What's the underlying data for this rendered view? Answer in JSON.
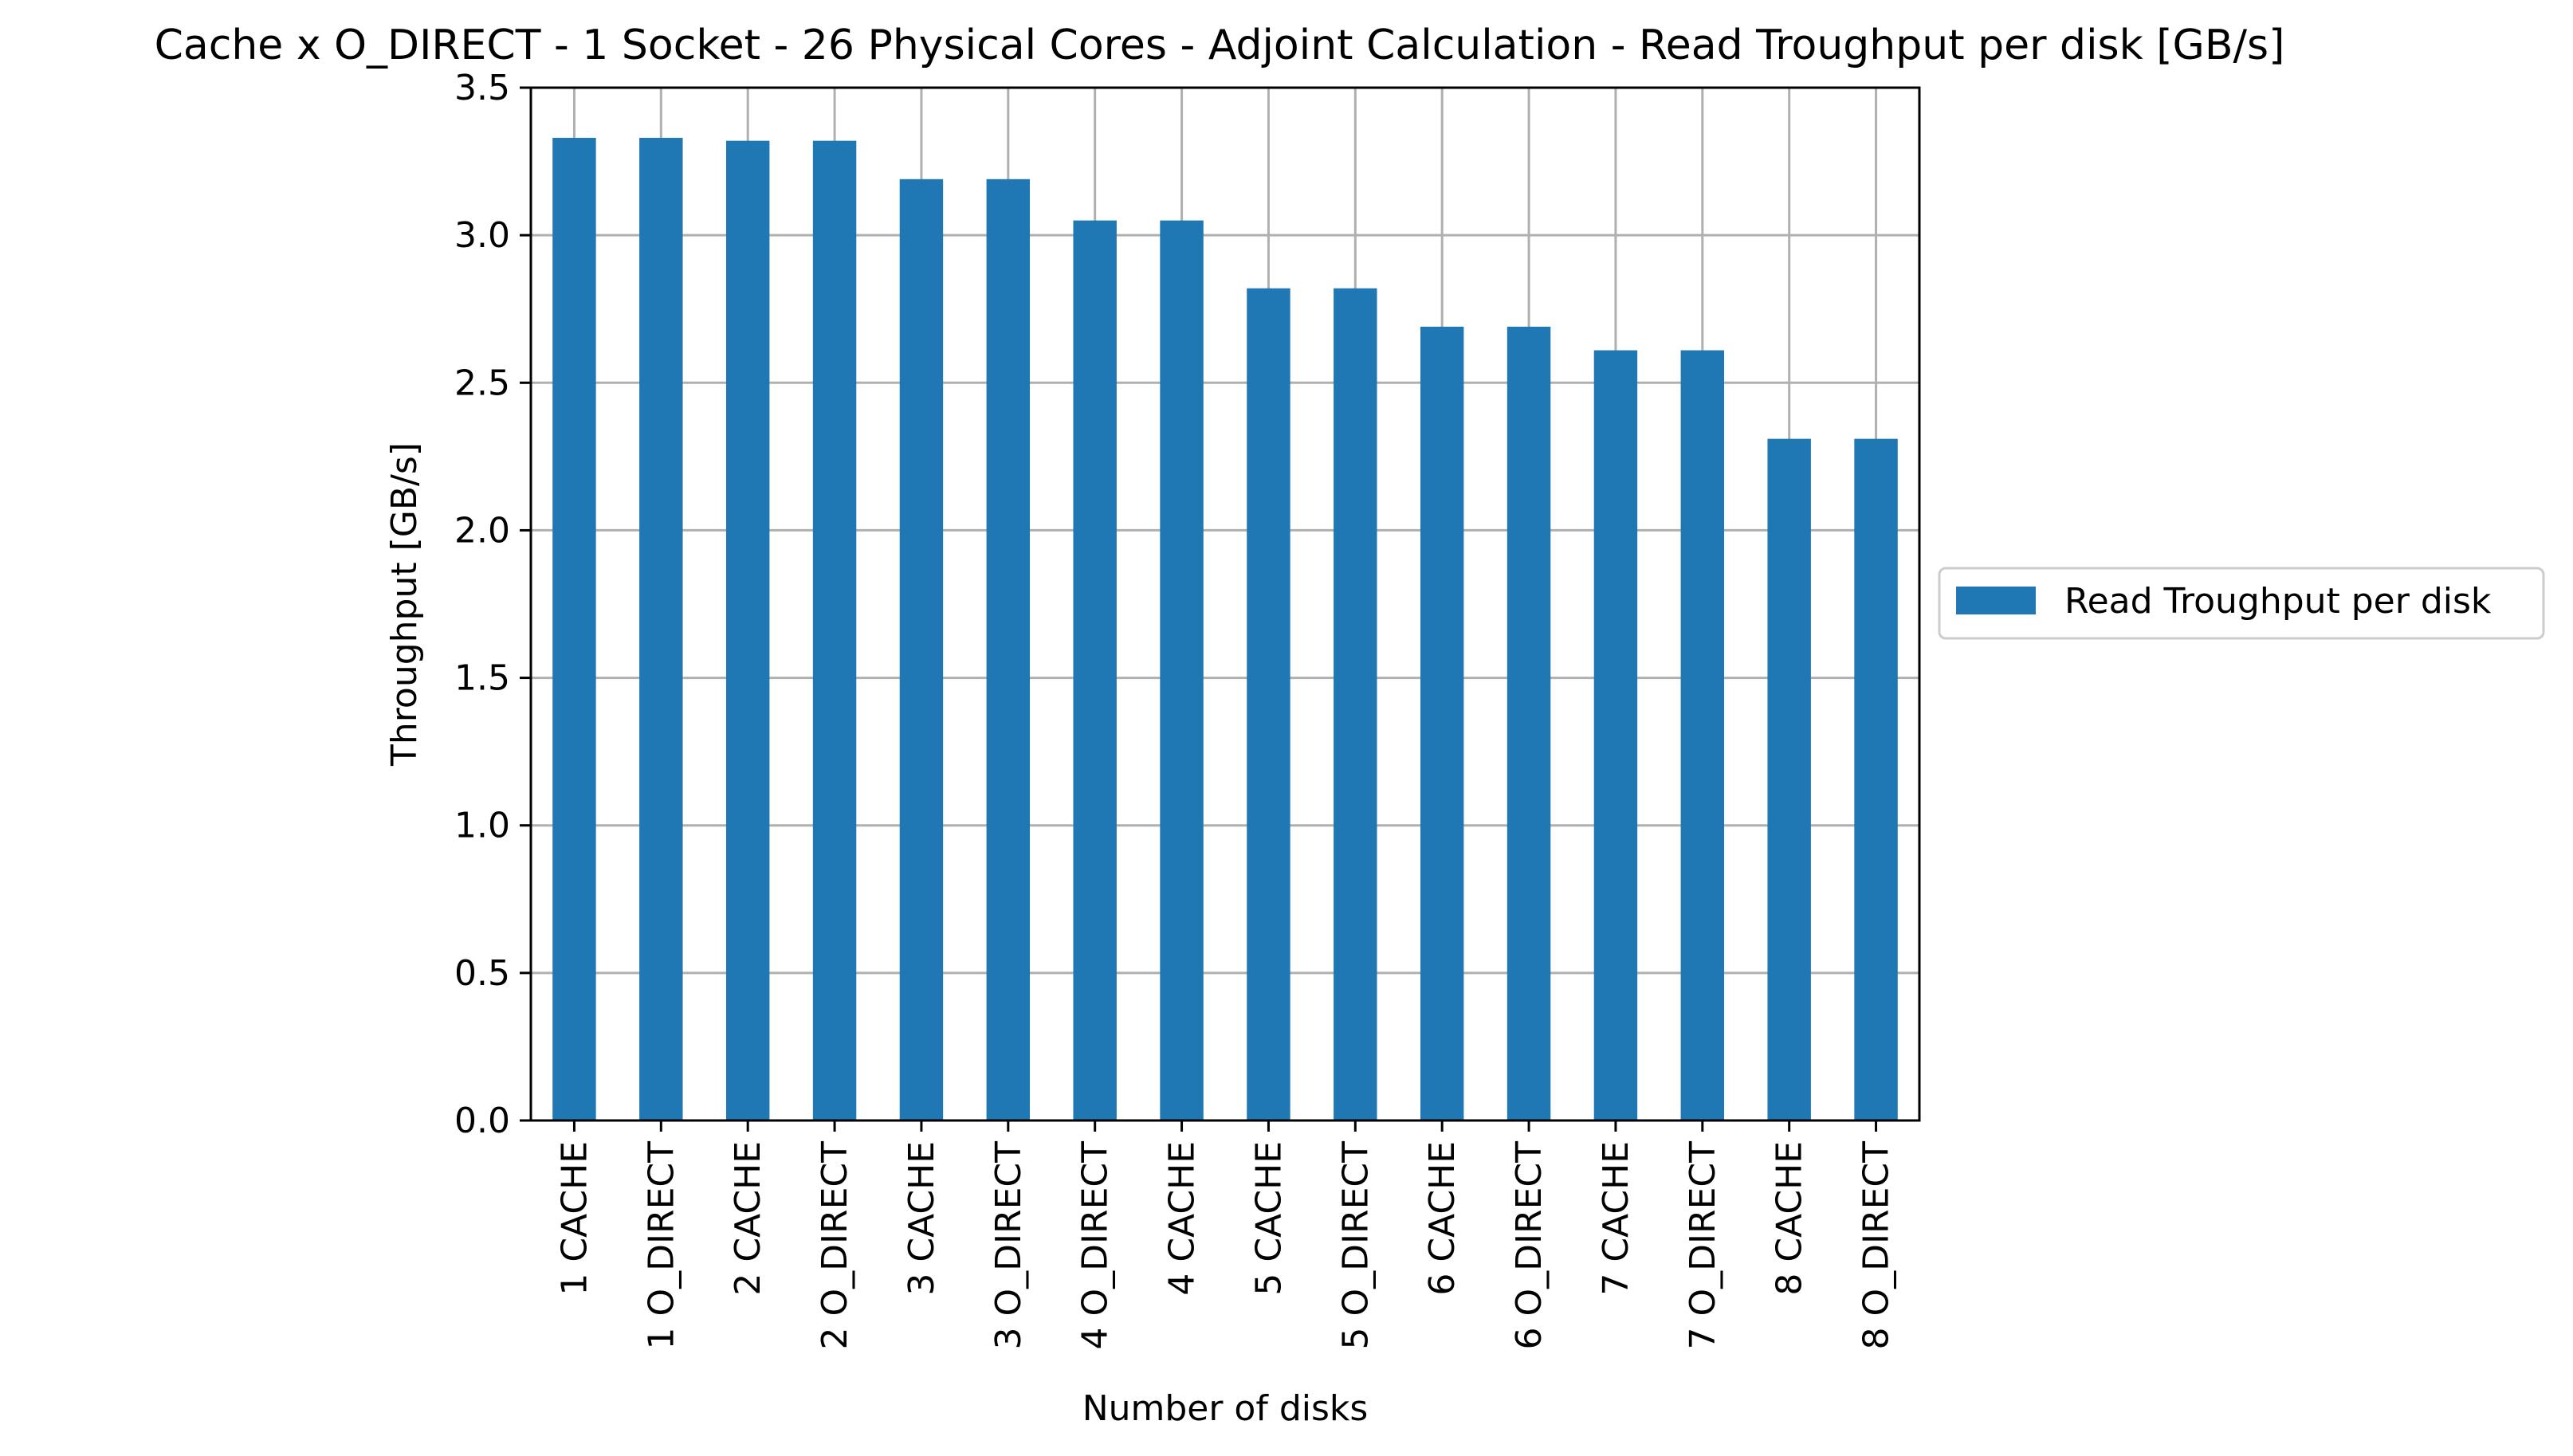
{
  "chart_data": {
    "type": "bar",
    "title": "Cache x O_DIRECT - 1 Socket - 26 Physical Cores - Adjoint Calculation - Read Troughput per disk [GB/s]",
    "xlabel": "Number of disks",
    "ylabel": "Throughput [GB/s]",
    "ylim": [
      0,
      3.5
    ],
    "yticks": [
      "0.0",
      "0.5",
      "1.0",
      "1.5",
      "2.0",
      "2.5",
      "3.0",
      "3.5"
    ],
    "grid": true,
    "legend_position": "center-right outside plot",
    "categories": [
      "1 CACHE",
      "1 O_DIRECT",
      "2 CACHE",
      "2 O_DIRECT",
      "3 CACHE",
      "3 O_DIRECT",
      "4 O_DIRECT",
      "4 CACHE",
      "5 CACHE",
      "5 O_DIRECT",
      "6 CACHE",
      "6 O_DIRECT",
      "7 CACHE",
      "7 O_DIRECT",
      "8 CACHE",
      "8 O_DIRECT"
    ],
    "series": [
      {
        "name": "Read Troughput per disk",
        "color": "#1f77b4",
        "values": [
          3.33,
          3.33,
          3.32,
          3.32,
          3.19,
          3.19,
          3.05,
          3.05,
          2.82,
          2.82,
          2.69,
          2.69,
          2.61,
          2.61,
          2.31,
          2.31
        ]
      }
    ]
  }
}
